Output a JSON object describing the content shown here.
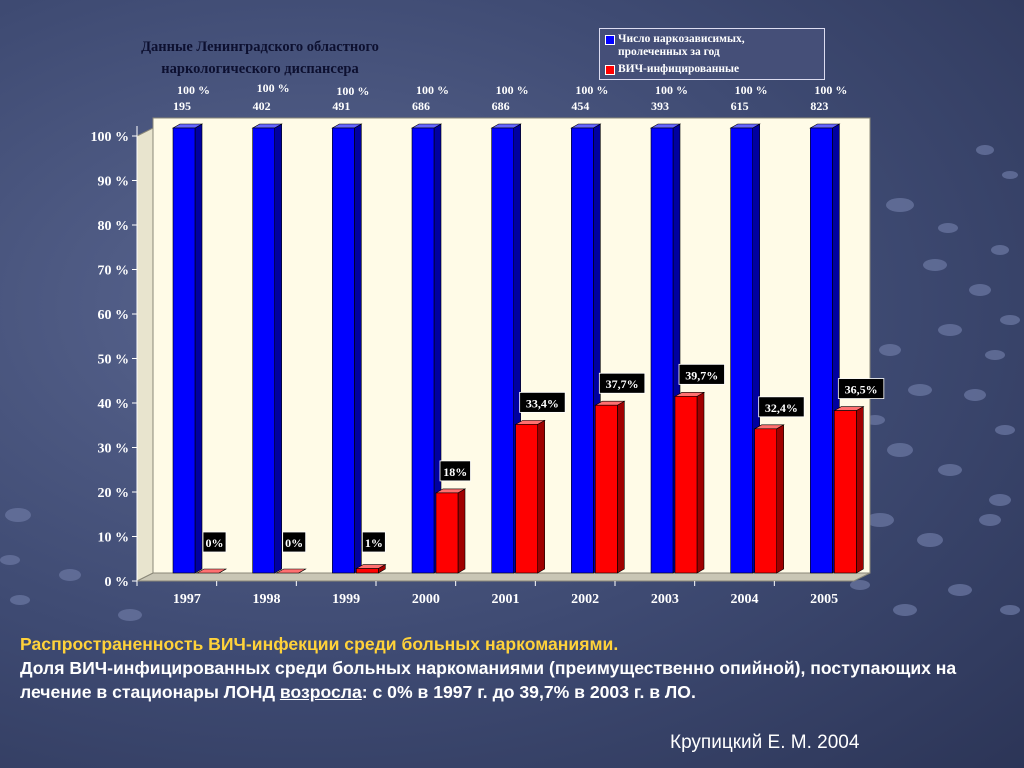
{
  "chart_data": {
    "type": "bar",
    "title": "Данные Ленинградского областного\nнаркологического диспансера",
    "categories": [
      "1997",
      "1998",
      "1999",
      "2000",
      "2001",
      "2002",
      "2003",
      "2004",
      "2005"
    ],
    "series": [
      {
        "name": "Число наркозависимых,\nпролеченных за год",
        "values": [
          100,
          100,
          100,
          100,
          100,
          100,
          100,
          100,
          100
        ],
        "color": "#0000ff"
      },
      {
        "name": "ВИЧ-инфицированные",
        "values": [
          0,
          0,
          1,
          18,
          33.4,
          37.7,
          39.7,
          32.4,
          36.5
        ],
        "color": "#ff0000"
      }
    ],
    "top_labels": [
      "100 %",
      "100 %",
      "100 %",
      "100 %",
      "100 %",
      "100 %",
      "100 %",
      "100 %",
      "100 %"
    ],
    "counts": [
      "195",
      "402",
      "491",
      "686",
      "686",
      "454",
      "393",
      "615",
      "823"
    ],
    "red_labels": [
      "0%",
      "0%",
      "1%",
      "18%",
      "33,4%",
      "37,7%",
      "39,7%",
      "32,4%",
      "36,5%"
    ],
    "y_ticks": [
      "0 %",
      "10 %",
      "20 %",
      "30 %",
      "40 %",
      "50 %",
      "60 %",
      "70 %",
      "80 %",
      "90 %",
      "100 %"
    ],
    "ylim": [
      0,
      100
    ],
    "grid": false,
    "legend_position": "top-right"
  },
  "caption": {
    "line1": "Распространенность ВИЧ-инфекции среди  больных наркоманиями.",
    "line2a": "Доля ВИЧ-инфицированных среди больных  наркоманиями (преимущественно опийной), поступающих  на лечение в стационары ЛОНД ",
    "line2u": "возросла",
    "line2b": ": с 0% в 1997 г. до 39,7% в 2003 г. в ЛО."
  },
  "author": "Крупицкий Е. М. 2004",
  "colors": {
    "wall": "#fffbe7",
    "floor": "#c9c6b5",
    "blue": "#0000ff",
    "red": "#ff0000",
    "label_bg": "#000000"
  }
}
